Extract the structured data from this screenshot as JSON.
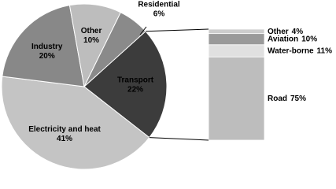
{
  "chart_data": [
    {
      "type": "pie",
      "categories": [
        "Transport",
        "Electricity and heat",
        "Industry",
        "Other",
        "Residential"
      ],
      "values": [
        22,
        41,
        20,
        10,
        6
      ],
      "value_labels": [
        "22%",
        "41%",
        "20%",
        "10%",
        "6%"
      ],
      "colors": [
        "#3c3c3c",
        "#c4c4c4",
        "#888888",
        "#bdbdbd",
        "#8a8a8a"
      ]
    },
    {
      "type": "stackedbar",
      "categories": [
        "Road",
        "Water-borne",
        "Aviation",
        "Other"
      ],
      "values": [
        75,
        11,
        10,
        4
      ],
      "value_labels": [
        "75%",
        "11%",
        "10%",
        "4%"
      ],
      "colors": [
        "#bdbdbd",
        "#e0e0e0",
        "#9a9a9a",
        "#cdcdcd"
      ]
    }
  ]
}
